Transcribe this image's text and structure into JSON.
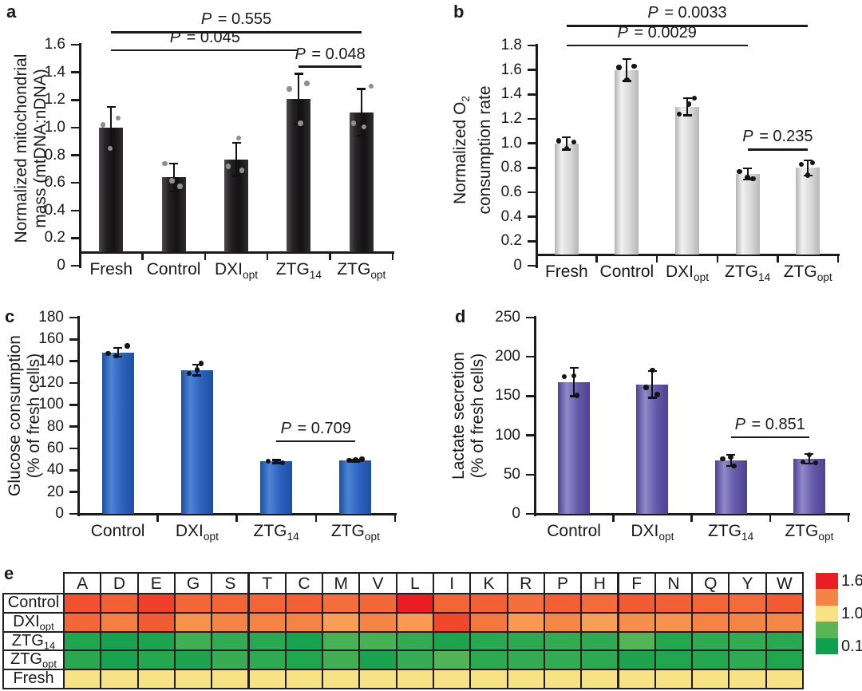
{
  "figure": {
    "background": "#ffffff",
    "panels": [
      {
        "id": "a",
        "label": "a"
      },
      {
        "id": "b",
        "label": "b"
      },
      {
        "id": "c",
        "label": "c"
      },
      {
        "id": "d",
        "label": "d"
      },
      {
        "id": "e",
        "label": "e"
      }
    ]
  },
  "chart_data": [
    {
      "panel": "a",
      "type": "bar",
      "ylabel_lines": [
        "Normalized mitochondrial",
        "mass (mtDNA:nDNA)"
      ],
      "ylim": [
        0,
        1.6
      ],
      "ystep": 0.2,
      "yticks": [
        "0",
        "0.2",
        "0.4",
        "0.6",
        "0.8",
        "1.0",
        "1.2",
        "1.4",
        "1.6"
      ],
      "categories": [
        "Fresh",
        "Control",
        "DXI_{opt}",
        "ZTG_{14}",
        "ZTG_{opt}"
      ],
      "values": [
        1.0,
        0.64,
        0.77,
        1.21,
        1.11
      ],
      "errors": [
        0.15,
        0.1,
        0.12,
        0.18,
        0.17
      ],
      "points": [
        [
          [
            -10,
            1.02
          ],
          [
            9,
            1.07
          ],
          [
            -1,
            0.85
          ]
        ],
        [
          [
            -11,
            0.74
          ],
          [
            -2,
            0.615
          ],
          [
            8,
            0.575
          ]
        ],
        [
          [
            3,
            0.925
          ],
          [
            -10,
            0.72
          ],
          [
            7,
            0.69
          ]
        ],
        [
          [
            -12,
            1.28
          ],
          [
            10,
            1.32
          ],
          [
            2,
            1.03
          ]
        ],
        [
          [
            -10,
            1.03
          ],
          [
            3,
            1.005
          ],
          [
            12,
            1.3
          ]
        ]
      ],
      "significance": [
        {
          "label": "P = 0.555",
          "from": 0,
          "to": 4,
          "line_value": 1.69
        },
        {
          "label": "P = 0.045",
          "from": 0,
          "to": 3,
          "line_value": 1.56
        },
        {
          "label": "P = 0.048",
          "from": 3,
          "to": 4,
          "line_value": 1.44
        }
      ],
      "colors": {
        "bar_gradient": [
          "#4a4a4c",
          "#242122",
          "#131113",
          "#2e2c2d"
        ],
        "point": "#8f8f8f",
        "error": "#111111"
      }
    },
    {
      "panel": "b",
      "type": "bar",
      "ylabel_lines": [
        "Normalized O_{2}",
        "consumption rate"
      ],
      "ylim": [
        0,
        1.8
      ],
      "ystep": 0.2,
      "yticks": [
        "0",
        "0.2",
        "0.4",
        "0.6",
        "0.8",
        "1.0",
        "1.2",
        "1.4",
        "1.6",
        "1.8"
      ],
      "categories": [
        "Fresh",
        "Control",
        "DXI_{opt}",
        "ZTG_{14}",
        "ZTG_{opt}"
      ],
      "values": [
        1.0,
        1.6,
        1.3,
        0.75,
        0.8
      ],
      "errors": [
        0.05,
        0.09,
        0.07,
        0.045,
        0.06
      ],
      "points": [
        [
          [
            -10,
            1.02
          ],
          [
            0,
            0.96
          ],
          [
            9,
            1.01
          ]
        ],
        [
          [
            -10,
            1.62
          ],
          [
            0,
            1.52
          ],
          [
            9,
            1.63
          ]
        ],
        [
          [
            -10,
            1.24
          ],
          [
            2,
            1.32
          ],
          [
            9,
            1.37
          ]
        ],
        [
          [
            -10,
            0.77
          ],
          [
            0,
            0.72
          ],
          [
            7,
            0.71
          ]
        ],
        [
          [
            -8,
            0.83
          ],
          [
            6,
            0.84
          ],
          [
            0,
            0.74
          ]
        ]
      ],
      "significance": [
        {
          "label": "P = 0.0033",
          "from": 0,
          "to": 4,
          "line_value": 1.96
        },
        {
          "label": "P = 0.0029",
          "from": 0,
          "to": 3,
          "line_value": 1.8
        },
        {
          "label": "P = 0.235",
          "from": 3,
          "to": 4,
          "line_value": 0.95
        }
      ],
      "colors": {
        "bar_gradient": [
          "#b3b3b3",
          "#f0f0f0",
          "#dadada",
          "#b6b6b6"
        ],
        "point": "#141414",
        "error": "#111111"
      }
    },
    {
      "panel": "c",
      "type": "bar",
      "ylabel_lines": [
        "Glucose consumption",
        "(% of fresh cells)"
      ],
      "ylim": [
        0,
        180
      ],
      "ystep": 20,
      "yticks": [
        "0",
        "20",
        "40",
        "60",
        "80",
        "100",
        "120",
        "140",
        "160",
        "180"
      ],
      "categories": [
        "Control",
        "DXI_{opt}",
        "ZTG_{14}",
        "ZTG_{opt}"
      ],
      "values": [
        148,
        132,
        48,
        49
      ],
      "errors": [
        4,
        5,
        1.5,
        1
      ],
      "points": [
        [
          [
            -12,
            147
          ],
          [
            -2,
            145
          ],
          [
            12,
            154
          ]
        ],
        [
          [
            -10,
            129
          ],
          [
            0,
            132
          ],
          [
            5,
            138
          ]
        ],
        [
          [
            -10,
            48.5
          ],
          [
            0,
            47.5
          ],
          [
            8,
            47
          ]
        ],
        [
          [
            -8,
            49
          ],
          [
            0,
            49.5
          ],
          [
            8,
            50
          ]
        ]
      ],
      "significance": [
        {
          "label": "P = 0.709",
          "from": 2,
          "to": 3,
          "line_value": 66.5
        }
      ],
      "colors": {
        "bar_gradient": [
          "#1b4f9e",
          "#4c84d4",
          "#2c63be",
          "#1d4fa5"
        ],
        "point": "#141414",
        "error": "#111111"
      }
    },
    {
      "panel": "d",
      "type": "bar",
      "ylabel_lines": [
        "Lactate secretion",
        "(% of fresh cells)"
      ],
      "ylim": [
        0,
        250
      ],
      "ystep": 50,
      "yticks": [
        "0",
        "50",
        "100",
        "150",
        "200",
        "250"
      ],
      "categories": [
        "Control",
        "DXI_{opt}",
        "ZTG_{14}",
        "ZTG_{opt}"
      ],
      "values": [
        168,
        165,
        68,
        70
      ],
      "errors": [
        18,
        17,
        7,
        6
      ],
      "points": [
        [
          [
            -12,
            175
          ],
          [
            0,
            176
          ],
          [
            4,
            151
          ]
        ],
        [
          [
            -8,
            161
          ],
          [
            0,
            183
          ],
          [
            6,
            152
          ]
        ],
        [
          [
            -10,
            70
          ],
          [
            0,
            72
          ],
          [
            4,
            61
          ]
        ],
        [
          [
            0,
            75
          ],
          [
            -8,
            66
          ],
          [
            8,
            65
          ]
        ]
      ],
      "significance": [
        {
          "label": "P = 0.851",
          "from": 2,
          "to": 3,
          "line_value": 97.5
        }
      ],
      "colors": {
        "bar_gradient": [
          "#4d4292",
          "#9189c7",
          "#6659aa",
          "#4d4292"
        ],
        "point": "#141414",
        "error": "#111111"
      }
    },
    {
      "panel": "e",
      "type": "heatmap",
      "columns": [
        "A",
        "D",
        "E",
        "G",
        "S",
        "T",
        "C",
        "M",
        "V",
        "L",
        "I",
        "K",
        "R",
        "P",
        "H",
        "F",
        "N",
        "Q",
        "Y",
        "W"
      ],
      "rows": [
        "Control",
        "DXI_{opt}",
        "ZTG_{14}",
        "ZTG_{opt}",
        "Fresh"
      ],
      "values": [
        [
          1.48,
          1.44,
          1.52,
          1.42,
          1.43,
          1.43,
          1.44,
          1.4,
          1.42,
          1.6,
          1.43,
          1.44,
          1.4,
          1.44,
          1.41,
          1.45,
          1.44,
          1.43,
          1.41,
          1.45
        ],
        [
          1.42,
          1.36,
          1.45,
          1.28,
          1.34,
          1.35,
          1.35,
          1.22,
          1.34,
          1.24,
          1.5,
          1.38,
          1.24,
          1.33,
          1.22,
          1.3,
          1.28,
          1.35,
          1.34,
          1.33
        ],
        [
          0.2,
          0.14,
          0.18,
          0.38,
          0.3,
          0.24,
          0.16,
          0.42,
          0.4,
          0.3,
          0.18,
          0.24,
          0.26,
          0.3,
          0.28,
          0.48,
          0.22,
          0.28,
          0.3,
          0.24
        ],
        [
          0.24,
          0.16,
          0.22,
          0.18,
          0.32,
          0.28,
          0.2,
          0.38,
          0.16,
          0.32,
          0.46,
          0.26,
          0.3,
          0.3,
          0.26,
          0.18,
          0.2,
          0.22,
          0.28,
          0.2
        ],
        [
          1.0,
          1.0,
          1.0,
          1.0,
          1.0,
          1.0,
          1.0,
          1.0,
          1.0,
          1.0,
          1.0,
          1.0,
          1.0,
          1.0,
          1.0,
          1.0,
          1.0,
          1.0,
          1.0,
          1.0
        ]
      ],
      "colormap_stops": [
        [
          0.1,
          "#0fa04d"
        ],
        [
          0.5,
          "#58b657"
        ],
        [
          1.0,
          "#f7e386"
        ],
        [
          1.18,
          "#f9a75c"
        ],
        [
          1.35,
          "#f58345"
        ],
        [
          1.5,
          "#f1482b"
        ],
        [
          1.6,
          "#ec1c24"
        ]
      ],
      "legend": {
        "position": "right",
        "labels": [
          "1.6",
          "1.0",
          "0.1"
        ],
        "band_colors": [
          "#ec1c24",
          "#f58345",
          "#f7e386",
          "#58b657",
          "#0fa04d"
        ]
      },
      "grid_color": "#231f20"
    }
  ]
}
